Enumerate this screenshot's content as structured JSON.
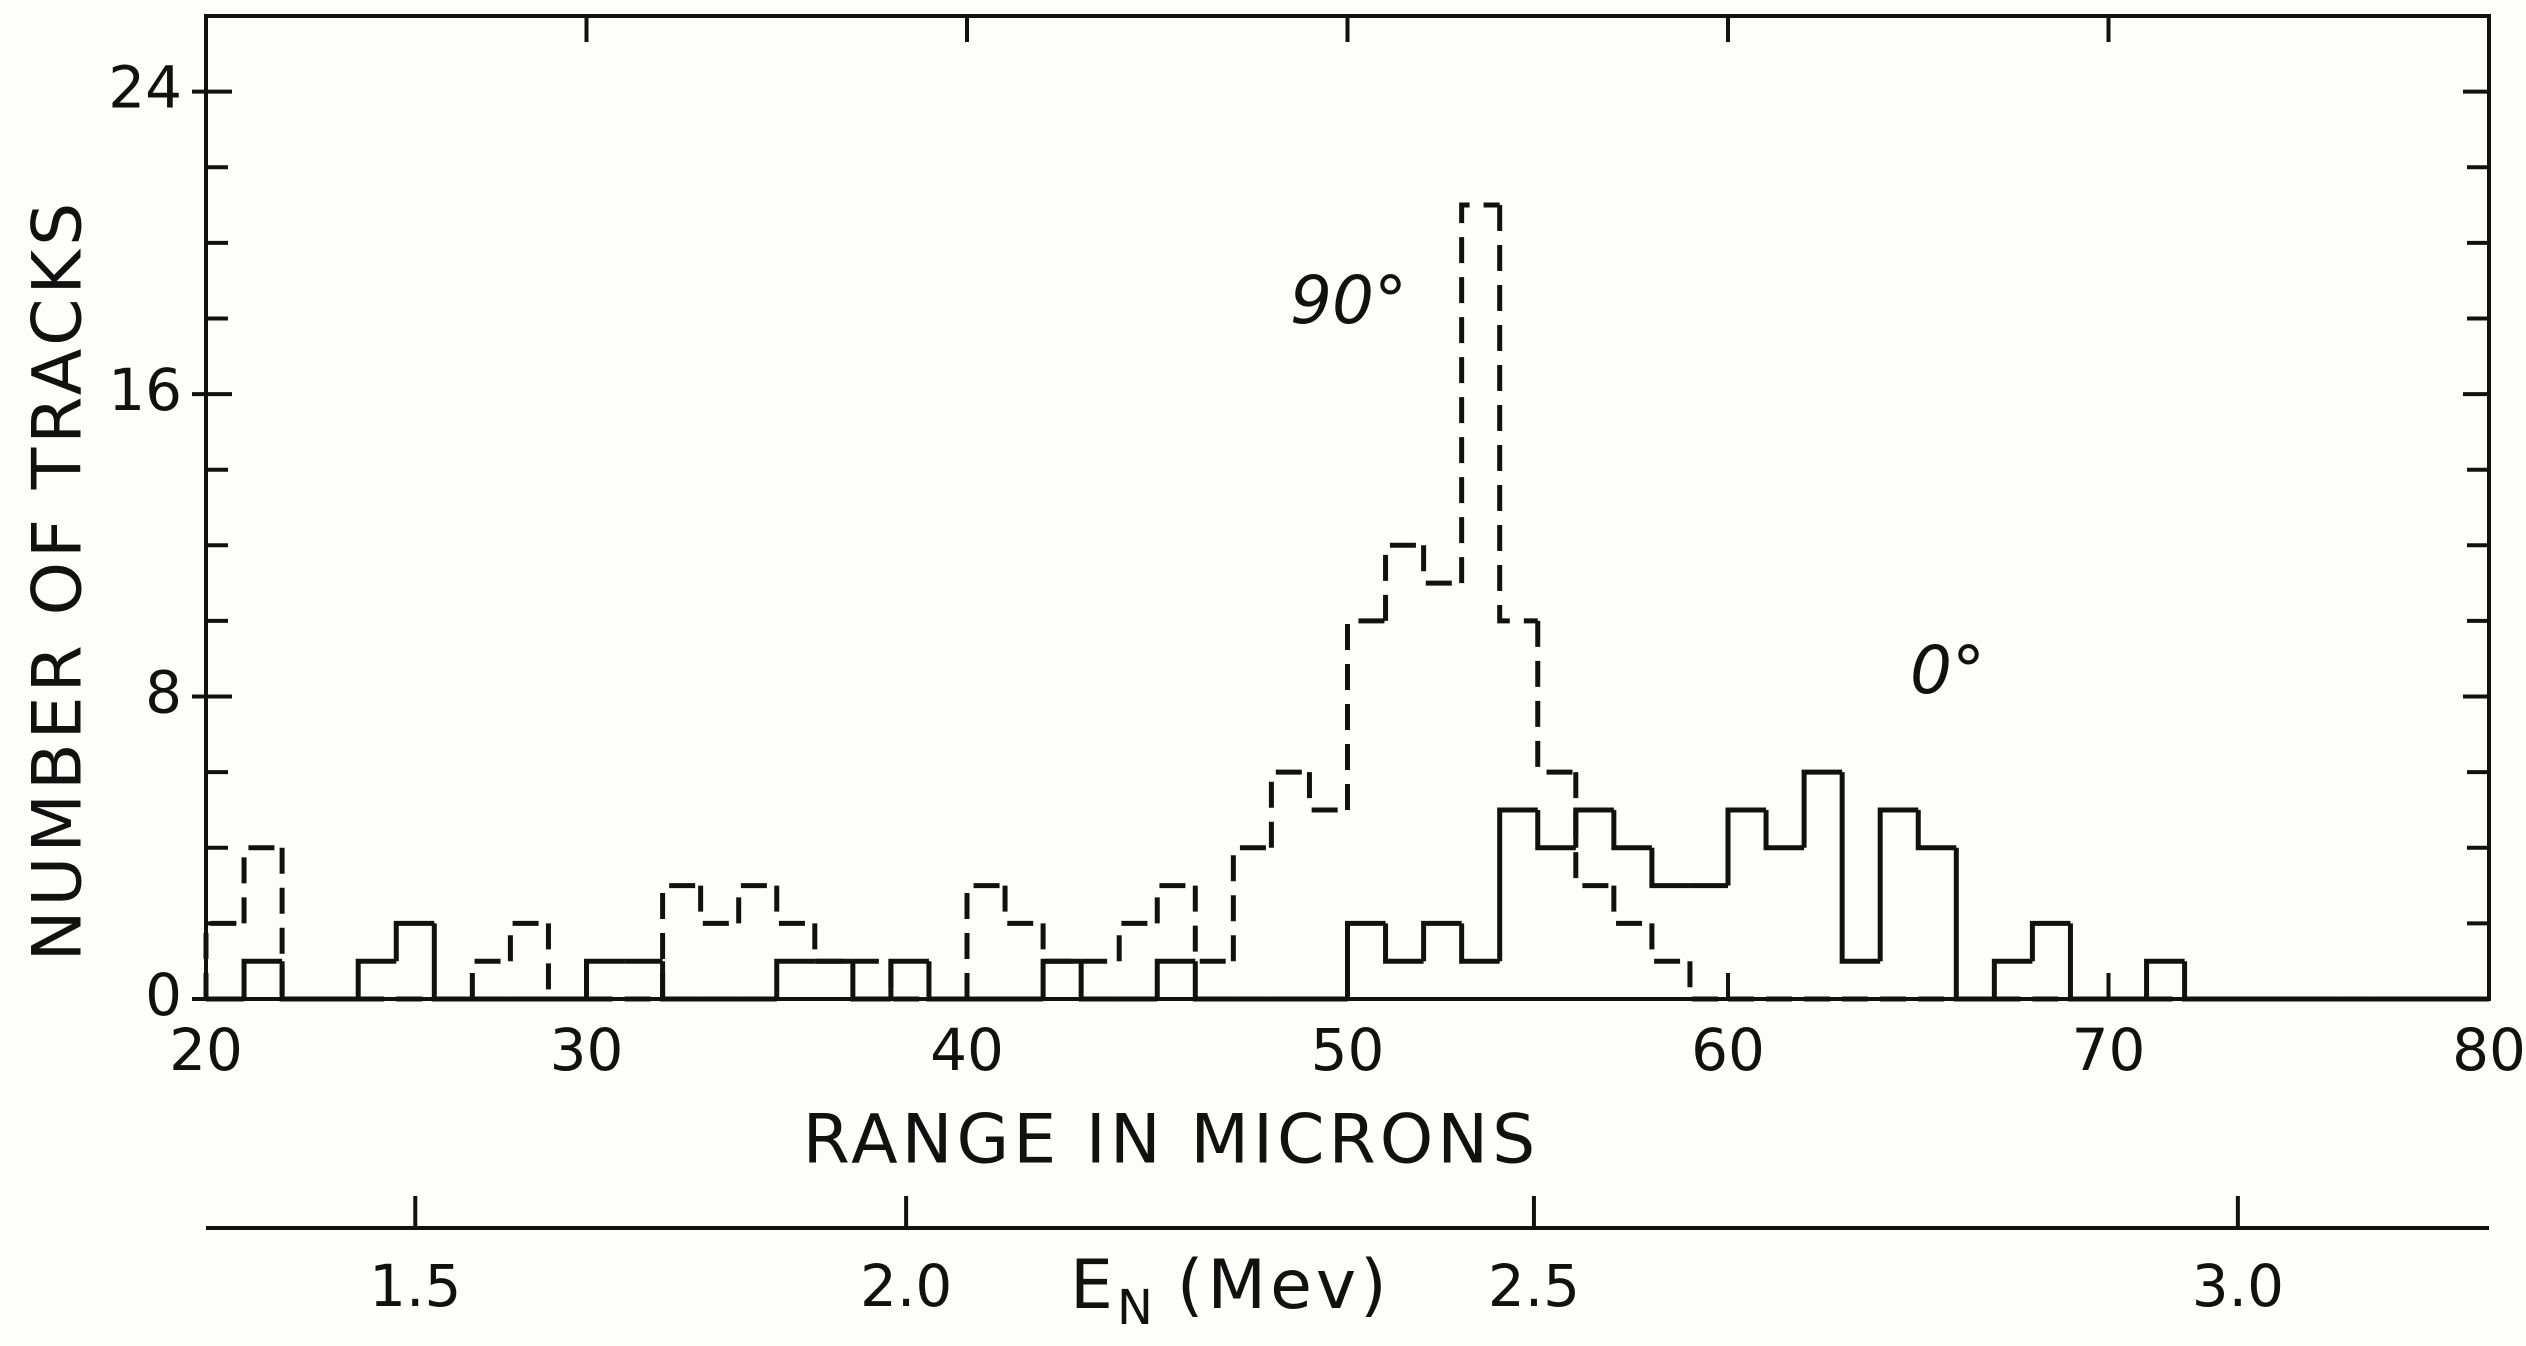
{
  "chart_data": {
    "type": "histogram",
    "xlabel": "RANGE IN MICRONS",
    "ylabel": "NUMBER OF TRACKS",
    "bins": [
      20,
      21,
      22,
      23,
      24,
      25,
      26,
      27,
      28,
      29,
      30,
      31,
      32,
      33,
      34,
      35,
      36,
      37,
      38,
      39,
      40,
      41,
      42,
      43,
      44,
      45,
      46,
      47,
      48,
      49,
      50,
      51,
      52,
      53,
      54,
      55,
      56,
      57,
      58,
      59,
      60,
      61,
      62,
      63,
      64,
      65,
      66,
      67,
      68,
      69,
      70,
      71,
      72,
      73,
      74,
      75,
      76,
      77,
      78,
      79,
      80
    ],
    "series": [
      {
        "name": "0°",
        "color": "#111111",
        "style": "solid",
        "values": [
          0,
          1,
          0,
          0,
          1,
          2,
          0,
          0,
          0,
          0,
          1,
          1,
          0,
          0,
          0,
          1,
          1,
          0,
          1,
          0,
          0,
          0,
          1,
          0,
          0,
          1,
          0,
          0,
          0,
          0,
          2,
          1,
          2,
          1,
          5,
          4,
          5,
          4,
          3,
          3,
          5,
          4,
          6,
          1,
          5,
          4,
          0,
          1,
          2,
          0,
          0,
          1,
          0,
          0,
          0,
          0,
          0,
          0,
          0,
          0
        ]
      },
      {
        "name": "90°",
        "color": "#111111",
        "style": "dashed",
        "values": [
          2,
          4,
          0,
          0,
          0,
          0,
          0,
          1,
          2,
          0,
          0,
          0,
          3,
          2,
          3,
          2,
          1,
          1,
          0,
          0,
          3,
          2,
          1,
          1,
          2,
          3,
          1,
          4,
          6,
          5,
          10,
          12,
          11,
          21,
          10,
          6,
          3,
          2,
          1,
          0,
          0,
          0,
          0,
          0,
          0,
          0,
          0,
          0,
          0,
          0,
          0,
          0,
          0,
          0,
          0,
          0,
          0,
          0,
          0,
          0
        ]
      }
    ],
    "xlim": [
      20,
      80
    ],
    "xticks": [
      20,
      30,
      40,
      50,
      60,
      70,
      80
    ],
    "ylim": [
      0,
      26
    ],
    "yticks": [
      0,
      8,
      16,
      24
    ],
    "yminor_ticks": [
      2,
      4,
      6,
      10,
      12,
      14,
      18,
      20,
      22
    ],
    "energy_axis": {
      "title": "E",
      "title_sub": "N",
      "title_unit": "(Mev)",
      "ticks": [
        {
          "value": 1.5,
          "label": "1.5",
          "range": 25.5
        },
        {
          "value": 2.0,
          "label": "2.0",
          "range": 38.4
        },
        {
          "value": 2.5,
          "label": "2.5",
          "range": 54.9
        },
        {
          "value": 3.0,
          "label": "3.0",
          "range": 73.4
        }
      ]
    }
  }
}
